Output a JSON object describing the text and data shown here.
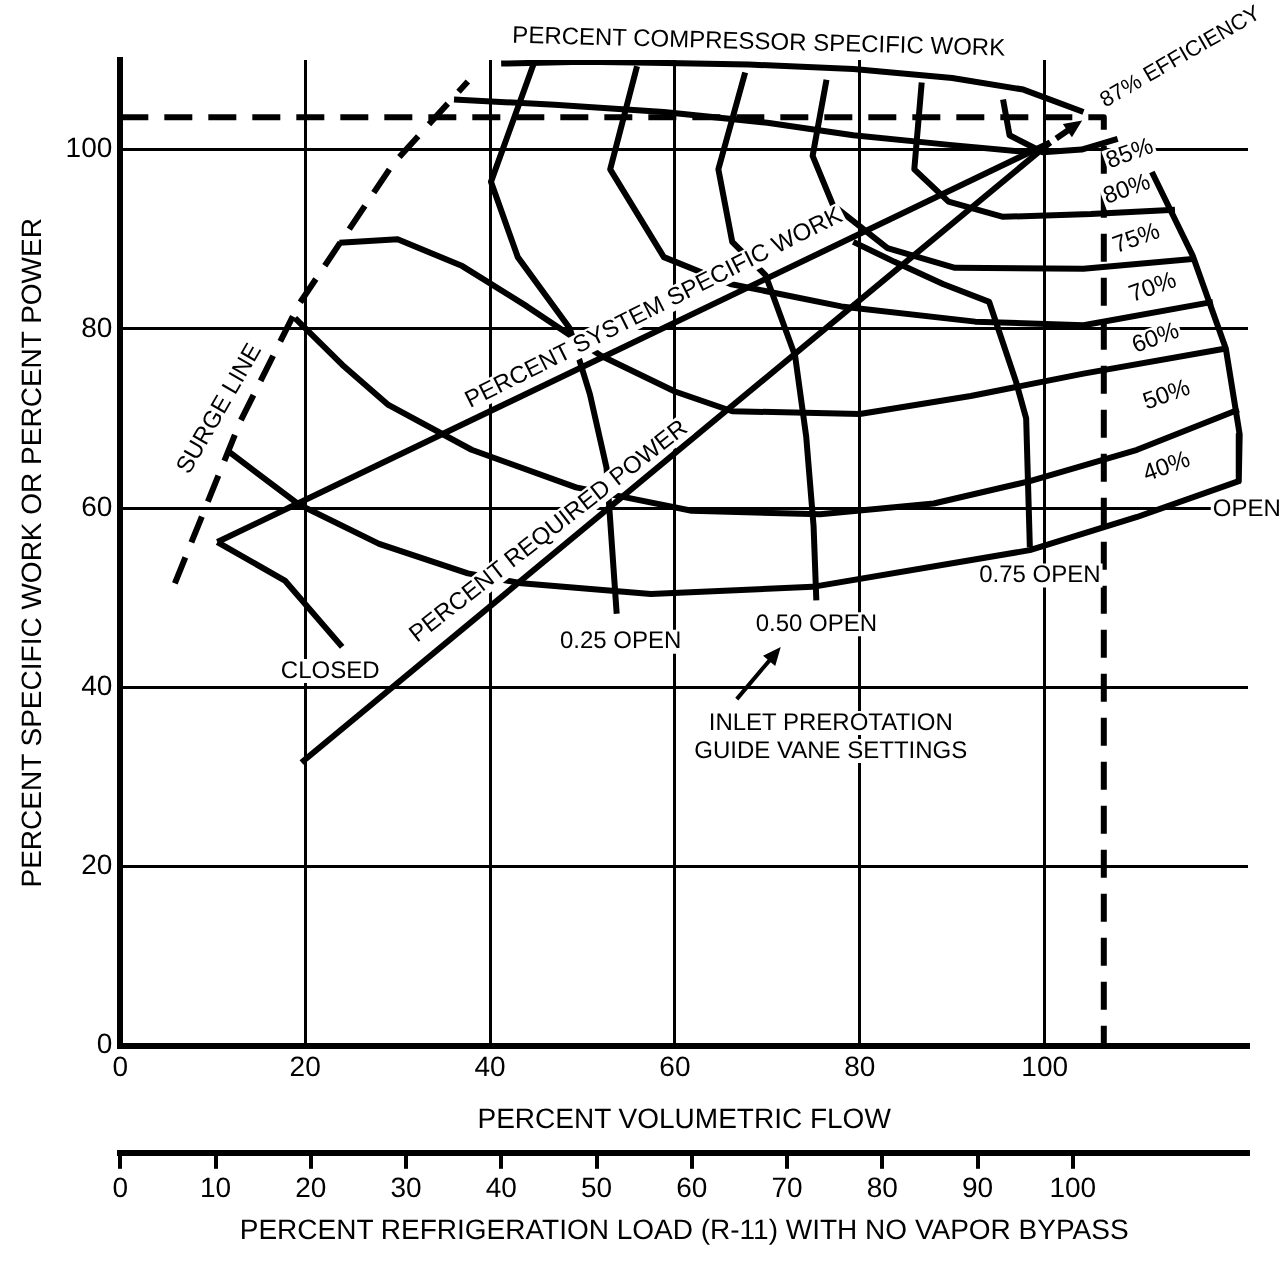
{
  "chart_data": {
    "type": "line",
    "xlabel": "PERCENT VOLUMETRIC FLOW",
    "ylabel": "PERCENT SPECIFIC WORK OR PERCENT POWER",
    "x2label": "PERCENT REFRIGERATION LOAD (R-11) WITH NO VAPOR BYPASS",
    "xlim": [
      0,
      122
    ],
    "xticks": [
      0,
      20,
      40,
      60,
      80,
      100
    ],
    "ylim": [
      0,
      110
    ],
    "yticks": [
      0,
      20,
      40,
      60,
      80,
      100
    ],
    "x2lim": [
      0,
      118.4
    ],
    "x2ticks": [
      0,
      10,
      20,
      30,
      40,
      50,
      60,
      70,
      80,
      90,
      100
    ],
    "grid": true,
    "legend": false,
    "series": [
      {
        "color": "#000000",
        "x": [
          41.2,
          50,
          57.4,
          68,
          79.3,
          90,
          97.7,
          104.2
        ],
        "values": [
          109.6,
          109.8,
          109.7,
          109.5,
          109,
          108,
          106.7,
          104.2
        ]
      },
      {
        "color": "#000000",
        "x": [
          36.1,
          47,
          58.8,
          70,
          79.3,
          90,
          98.4
        ],
        "values": [
          105.6,
          105,
          104.2,
          103,
          101.6,
          100.5,
          99.7
        ]
      },
      {
        "color": "#000000",
        "x": [
          10.5,
          100.6
        ],
        "values": [
          56.2,
          100.8
        ]
      },
      {
        "color": "#000000",
        "x": [
          19.6,
          100.6
        ],
        "values": [
          31.6,
          100.8
        ]
      },
      {
        "color": "#000000",
        "line_style": "dashed",
        "x": [
          5.9,
          13,
          19.3,
          29.5,
          37.6
        ],
        "values": [
          51.6,
          69.7,
          82.7,
          98.4,
          107.6
        ]
      },
      {
        "color": "#000000",
        "line_style": "dashed",
        "x": [
          0,
          106.4,
          106.4
        ],
        "values": [
          103.6,
          103.6,
          0
        ]
      },
      {
        "color": "#000000",
        "x": [
          95.5,
          96.2,
          99.8,
          104,
          107.9
        ],
        "values": [
          105.6,
          101.6,
          99.7,
          100,
          101.2
        ]
      },
      {
        "color": "#000000",
        "x": [
          86.7,
          85.9,
          89.6,
          95.5,
          105,
          114.1
        ],
        "values": [
          107.5,
          97.8,
          94.2,
          92.5,
          92.8,
          93.3
        ]
      },
      {
        "color": "#000000",
        "x": [
          76.4,
          74.9,
          77.1,
          83,
          90.3,
          104.2,
          116
        ],
        "values": [
          107.8,
          99.3,
          93.8,
          89,
          86.8,
          86.7,
          87.8
        ]
      },
      {
        "color": "#000000",
        "x": [
          55.9,
          53,
          58.8,
          66,
          78,
          92.5,
          104.2,
          118.2
        ],
        "values": [
          109.3,
          97.8,
          88,
          85,
          82.5,
          80.8,
          80.4,
          83
        ]
      },
      {
        "color": "#000000",
        "x": [
          23.7,
          30,
          37,
          44,
          52,
          60,
          66.2,
          80,
          92,
          104.2,
          119.6
        ],
        "values": [
          89.6,
          90,
          87,
          82.5,
          77,
          73,
          70.8,
          70.5,
          72.5,
          75,
          77.8
        ]
      },
      {
        "color": "#000000",
        "x": [
          18.9,
          24,
          29,
          38,
          49.3,
          61.8,
          75.7,
          88,
          98.4,
          110,
          121
        ],
        "values": [
          81.2,
          76,
          71.5,
          66.5,
          62.3,
          59.7,
          59.3,
          60.5,
          63,
          66.5,
          71
        ]
      },
      {
        "color": "#000000",
        "x": [
          11.6,
          19.3,
          28,
          37.6,
          43.4,
          57.4,
          74.9,
          98.4,
          110,
          121
        ],
        "values": [
          66.4,
          60.4,
          56,
          52.7,
          51.6,
          50.4,
          51.2,
          55.3,
          59,
          63
        ]
      },
      {
        "color": "#000000",
        "x": [
          10.5,
          17.8,
          24
        ],
        "values": [
          56.2,
          51.9,
          44.5
        ]
      },
      {
        "color": "#000000",
        "x": [
          44.8,
          40.1,
          43,
          48.6,
          50.8,
          52.6,
          53.7
        ],
        "values": [
          109.8,
          96.4,
          88,
          80.1,
          72.7,
          64.5,
          48.2
        ]
      },
      {
        "color": "#000000",
        "x": [
          67.6,
          64.7,
          66.2,
          69.8,
          73,
          74.2,
          75,
          75.3
        ],
        "values": [
          108.6,
          97.8,
          89.7,
          86,
          77,
          68,
          58,
          49.7
        ]
      },
      {
        "color": "#000000",
        "x": [
          79.3,
          83.7,
          89,
          94,
          96.9,
          98,
          98.4
        ],
        "values": [
          89.7,
          87.5,
          85,
          83,
          74.1,
          70,
          55.6
        ]
      },
      {
        "color": "#000000",
        "x": [
          111.6,
          116,
          119.6,
          121.1,
          121
        ],
        "values": [
          97.5,
          88.2,
          77.8,
          68.2,
          63
        ]
      }
    ],
    "annotations": [
      {
        "text": "PERCENT COMPRESSOR SPECIFIC WORK",
        "x": 69,
        "y": 109.5
      },
      {
        "text": "87% EFFICIENCY",
        "x": 100.6,
        "y": 100.8
      },
      {
        "text": "85%",
        "x": 111.6,
        "y": 97.5
      },
      {
        "text": "80%",
        "x": 114.1,
        "y": 93.3
      },
      {
        "text": "75%",
        "x": 116,
        "y": 87.8
      },
      {
        "text": "70%",
        "x": 118.2,
        "y": 83
      },
      {
        "text": "60%",
        "x": 119.6,
        "y": 77.8
      },
      {
        "text": "50%",
        "x": 121,
        "y": 71
      },
      {
        "text": "40%",
        "x": 121,
        "y": 63
      },
      {
        "text": "OPEN",
        "x": 121,
        "y": 63
      },
      {
        "text": "SURGE LINE",
        "x": 13,
        "y": 69.7
      },
      {
        "text": "PERCENT SYSTEM SPECIFIC WORK",
        "x": 58.7,
        "y": 80.3
      },
      {
        "text": "PERCENT REQUIRED POWER",
        "x": 47.7,
        "y": 55.6
      },
      {
        "text": "CLOSED",
        "x": 24,
        "y": 44.5
      },
      {
        "text": "0.25 OPEN",
        "x": 53.7,
        "y": 48.2
      },
      {
        "text": "0.50 OPEN",
        "x": 75.3,
        "y": 49.7
      },
      {
        "text": "0.75 OPEN",
        "x": 98.4,
        "y": 55.6
      },
      "INLET PREROTATION\nGUIDE VANE SETTINGS"
    ]
  }
}
